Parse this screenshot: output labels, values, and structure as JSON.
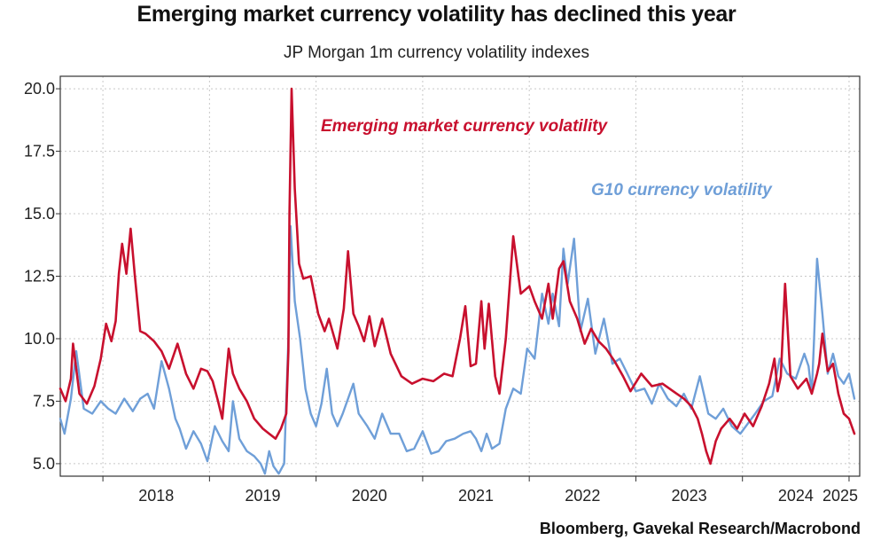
{
  "chart_data": {
    "type": "line",
    "title": "Emerging market currency volatility has declined this year",
    "subtitle": "JP Morgan 1m currency volatility indexes",
    "source": "Bloomberg, Gavekal Research/Macrobond",
    "xlabel": "",
    "ylabel": "",
    "xlim": [
      2017.6,
      2025.1
    ],
    "ylim": [
      4.5,
      20.5
    ],
    "yticks": [
      5.0,
      7.5,
      10.0,
      12.5,
      15.0,
      17.5,
      20.0
    ],
    "ytick_labels": [
      "5.0",
      "7.5",
      "10.0",
      "12.5",
      "15.0",
      "17.5",
      "20.0"
    ],
    "xticks": [
      2018,
      2019,
      2020,
      2021,
      2022,
      2023,
      2024,
      2025
    ],
    "xtick_labels": [
      "2018",
      "2019",
      "2020",
      "2021",
      "2022",
      "2023",
      "2024",
      "2025"
    ],
    "grid": true,
    "annotations": [
      {
        "text": "Emerging market currency volatility",
        "series": "em",
        "color": "#c8102e"
      },
      {
        "text": "G10 currency volatility",
        "series": "g10",
        "color": "#6f9fd8"
      }
    ],
    "series": [
      {
        "name": "Emerging market currency volatility",
        "id": "em",
        "color": "#c8102e",
        "x": [
          2017.6,
          2017.65,
          2017.7,
          2017.72,
          2017.78,
          2017.85,
          2017.92,
          2017.98,
          2018.03,
          2018.08,
          2018.12,
          2018.15,
          2018.18,
          2018.22,
          2018.26,
          2018.3,
          2018.35,
          2018.4,
          2018.48,
          2018.55,
          2018.62,
          2018.7,
          2018.78,
          2018.85,
          2018.92,
          2018.98,
          2019.03,
          2019.08,
          2019.12,
          2019.18,
          2019.22,
          2019.28,
          2019.35,
          2019.42,
          2019.5,
          2019.56,
          2019.62,
          2019.67,
          2019.72,
          2019.74,
          2019.75,
          2019.77,
          2019.8,
          2019.84,
          2019.88,
          2019.95,
          2020.02,
          2020.08,
          2020.12,
          2020.2,
          2020.26,
          2020.3,
          2020.35,
          2020.4,
          2020.45,
          2020.5,
          2020.55,
          2020.62,
          2020.7,
          2020.8,
          2020.9,
          2021.0,
          2021.1,
          2021.2,
          2021.28,
          2021.35,
          2021.4,
          2021.45,
          2021.5,
          2021.55,
          2021.58,
          2021.62,
          2021.68,
          2021.72,
          2021.78,
          2021.85,
          2021.92,
          2022.0,
          2022.05,
          2022.12,
          2022.18,
          2022.22,
          2022.28,
          2022.32,
          2022.38,
          2022.45,
          2022.52,
          2022.58,
          2022.65,
          2022.72,
          2022.8,
          2022.88,
          2022.95,
          2023.05,
          2023.15,
          2023.25,
          2023.35,
          2023.45,
          2023.52,
          2023.58,
          2023.62,
          2023.66,
          2023.7,
          2023.75,
          2023.8,
          2023.88,
          2023.95,
          2024.02,
          2024.1,
          2024.18,
          2024.25,
          2024.3,
          2024.33,
          2024.36,
          2024.4,
          2024.45,
          2024.52,
          2024.6,
          2024.65,
          2024.7,
          2024.72,
          2024.75,
          2024.8,
          2024.85,
          2024.9,
          2024.95,
          2025.0,
          2025.05
        ],
        "values": [
          8.0,
          7.5,
          8.4,
          9.8,
          7.8,
          7.4,
          8.1,
          9.2,
          10.6,
          9.9,
          10.7,
          12.6,
          13.8,
          12.6,
          14.4,
          12.5,
          10.3,
          10.2,
          9.9,
          9.5,
          8.8,
          9.8,
          8.6,
          8.0,
          8.8,
          8.7,
          8.3,
          7.5,
          6.8,
          9.6,
          8.6,
          8.0,
          7.5,
          6.8,
          6.4,
          6.2,
          6.0,
          6.4,
          7.0,
          9.5,
          15.0,
          20.0,
          16.0,
          13.0,
          12.4,
          12.5,
          11.0,
          10.3,
          10.8,
          9.6,
          11.2,
          13.5,
          11.0,
          10.5,
          9.9,
          10.9,
          9.7,
          10.8,
          9.4,
          8.5,
          8.2,
          8.4,
          8.3,
          8.6,
          8.5,
          10.0,
          11.3,
          8.9,
          9.0,
          11.5,
          9.6,
          11.4,
          8.5,
          7.8,
          10.0,
          14.1,
          11.8,
          12.1,
          11.5,
          10.8,
          12.2,
          10.8,
          12.8,
          13.1,
          11.5,
          10.8,
          9.8,
          10.4,
          9.9,
          9.6,
          9.1,
          8.5,
          7.9,
          8.6,
          8.1,
          8.2,
          7.9,
          7.6,
          7.3,
          6.8,
          6.2,
          5.5,
          5.0,
          5.9,
          6.4,
          6.8,
          6.4,
          7.0,
          6.5,
          7.3,
          8.2,
          9.2,
          7.9,
          8.5,
          12.2,
          8.5,
          8.0,
          8.4,
          7.8,
          8.6,
          9.0,
          10.2,
          8.7,
          9.0,
          7.8,
          7.0,
          6.8,
          6.2
        ]
      },
      {
        "name": "G10 currency volatility",
        "id": "g10",
        "color": "#6f9fd8",
        "x": [
          2017.6,
          2017.64,
          2017.7,
          2017.75,
          2017.82,
          2017.9,
          2017.98,
          2018.05,
          2018.12,
          2018.2,
          2018.28,
          2018.35,
          2018.42,
          2018.48,
          2018.55,
          2018.62,
          2018.68,
          2018.72,
          2018.78,
          2018.85,
          2018.92,
          2018.98,
          2019.05,
          2019.12,
          2019.18,
          2019.22,
          2019.28,
          2019.35,
          2019.42,
          2019.48,
          2019.52,
          2019.56,
          2019.6,
          2019.65,
          2019.7,
          2019.72,
          2019.74,
          2019.76,
          2019.8,
          2019.85,
          2019.9,
          2019.95,
          2020.0,
          2020.05,
          2020.1,
          2020.15,
          2020.2,
          2020.25,
          2020.3,
          2020.35,
          2020.4,
          2020.48,
          2020.55,
          2020.62,
          2020.7,
          2020.78,
          2020.85,
          2020.92,
          2021.0,
          2021.08,
          2021.15,
          2021.22,
          2021.3,
          2021.38,
          2021.45,
          2021.5,
          2021.55,
          2021.6,
          2021.65,
          2021.72,
          2021.78,
          2021.85,
          2021.92,
          2021.98,
          2022.05,
          2022.12,
          2022.18,
          2022.22,
          2022.28,
          2022.32,
          2022.36,
          2022.42,
          2022.48,
          2022.55,
          2022.62,
          2022.7,
          2022.78,
          2022.85,
          2022.92,
          2023.0,
          2023.08,
          2023.15,
          2023.22,
          2023.3,
          2023.38,
          2023.45,
          2023.52,
          2023.6,
          2023.68,
          2023.75,
          2023.82,
          2023.9,
          2023.98,
          2024.05,
          2024.12,
          2024.2,
          2024.28,
          2024.35,
          2024.42,
          2024.5,
          2024.58,
          2024.62,
          2024.65,
          2024.67,
          2024.7,
          2024.75,
          2024.8,
          2024.85,
          2024.9,
          2024.95,
          2025.0,
          2025.05
        ],
        "values": [
          6.8,
          6.2,
          7.6,
          9.5,
          7.2,
          7.0,
          7.5,
          7.2,
          7.0,
          7.6,
          7.1,
          7.6,
          7.8,
          7.2,
          9.1,
          8.0,
          6.8,
          6.4,
          5.6,
          6.3,
          5.8,
          5.1,
          6.5,
          5.9,
          5.5,
          7.5,
          6.0,
          5.5,
          5.3,
          5.0,
          4.6,
          5.5,
          4.9,
          4.6,
          5.0,
          7.5,
          10.0,
          14.5,
          11.5,
          10.0,
          8.0,
          7.0,
          6.5,
          7.4,
          8.8,
          7.0,
          6.5,
          7.0,
          7.6,
          8.2,
          7.0,
          6.5,
          6.0,
          7.0,
          6.2,
          6.2,
          5.5,
          5.6,
          6.3,
          5.4,
          5.5,
          5.9,
          6.0,
          6.2,
          6.3,
          6.0,
          5.5,
          6.2,
          5.6,
          5.8,
          7.2,
          8.0,
          7.8,
          9.6,
          9.2,
          11.8,
          10.6,
          11.8,
          10.5,
          13.6,
          12.2,
          14.0,
          10.3,
          11.6,
          9.4,
          10.8,
          9.0,
          9.2,
          8.6,
          7.9,
          8.0,
          7.4,
          8.2,
          7.6,
          7.3,
          7.8,
          7.2,
          8.5,
          7.0,
          6.8,
          7.2,
          6.5,
          6.2,
          6.6,
          7.0,
          7.5,
          7.7,
          9.2,
          8.6,
          8.4,
          9.4,
          8.9,
          7.8,
          9.8,
          13.2,
          11.0,
          8.6,
          9.4,
          8.5,
          8.2,
          8.6,
          7.6
        ]
      }
    ]
  }
}
